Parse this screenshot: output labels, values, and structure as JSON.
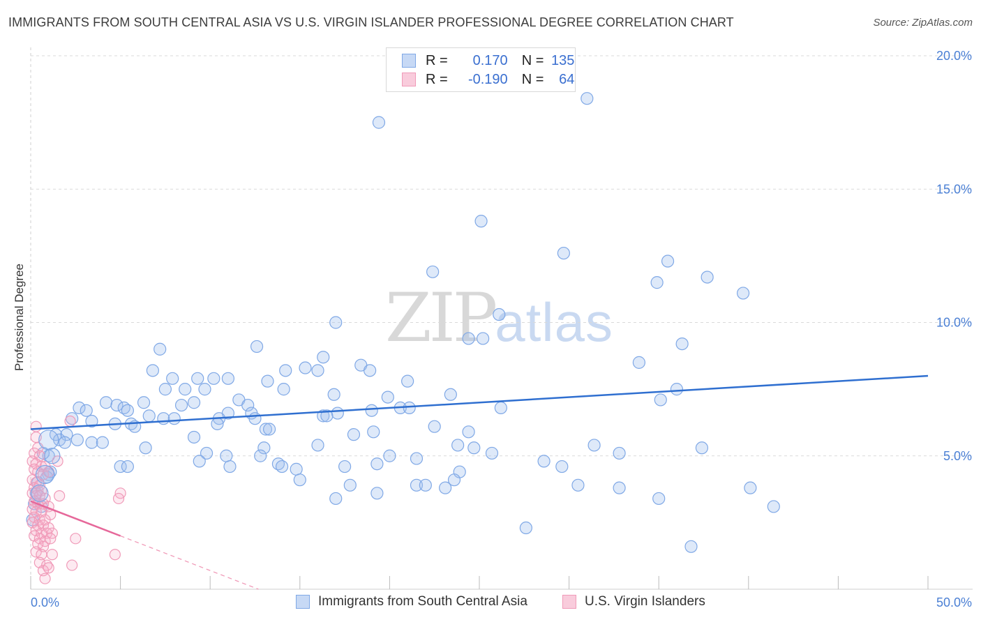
{
  "header": {
    "title": "IMMIGRANTS FROM SOUTH CENTRAL ASIA VS U.S. VIRGIN ISLANDER PROFESSIONAL DEGREE CORRELATION CHART",
    "source": "Source: ZipAtlas.com"
  },
  "watermark": {
    "zip": "ZIP",
    "atlas": "atlas"
  },
  "legend": {
    "r_label": "R =",
    "n_label": "N =",
    "rows": [
      {
        "r": "0.170",
        "n": "135",
        "color": "#7fa8e6"
      },
      {
        "r": "-0.190",
        "n": "64",
        "color": "#f09ab8"
      }
    ]
  },
  "chart_data": {
    "type": "scatter",
    "title": "IMMIGRANTS FROM SOUTH CENTRAL ASIA VS U.S. VIRGIN ISLANDER PROFESSIONAL DEGREE CORRELATION CHART",
    "xlabel": "",
    "ylabel": "Professional Degree",
    "xlim": [
      0,
      50
    ],
    "ylim": [
      0,
      20
    ],
    "x_tick_labels": [
      "0.0%",
      "50.0%"
    ],
    "y_ticks": [
      5,
      10,
      15,
      20
    ],
    "y_tick_labels": [
      "5.0%",
      "10.0%",
      "15.0%",
      "20.0%"
    ],
    "grid": true,
    "legend_position": "bottom",
    "series": [
      {
        "name": "Immigrants from South Central Asia",
        "color": "#7fa8e6",
        "trend": {
          "x": [
            0,
            50
          ],
          "y": [
            6.0,
            8.0
          ]
        },
        "points": [
          [
            19.4,
            17.5
          ],
          [
            31.0,
            18.4
          ],
          [
            25.1,
            13.8
          ],
          [
            29.7,
            12.6
          ],
          [
            22.4,
            11.9
          ],
          [
            35.5,
            12.3
          ],
          [
            34.9,
            11.5
          ],
          [
            37.7,
            11.7
          ],
          [
            39.7,
            11.1
          ],
          [
            17.0,
            10.0
          ],
          [
            26.1,
            10.3
          ],
          [
            24.4,
            9.4
          ],
          [
            25.2,
            9.4
          ],
          [
            36.3,
            9.2
          ],
          [
            7.2,
            9.0
          ],
          [
            12.6,
            9.1
          ],
          [
            33.9,
            8.5
          ],
          [
            16.3,
            8.7
          ],
          [
            18.4,
            8.4
          ],
          [
            15.3,
            8.3
          ],
          [
            16.0,
            8.2
          ],
          [
            14.2,
            8.2
          ],
          [
            18.9,
            8.2
          ],
          [
            6.8,
            8.2
          ],
          [
            7.9,
            7.9
          ],
          [
            9.3,
            7.9
          ],
          [
            10.2,
            7.9
          ],
          [
            11.0,
            7.9
          ],
          [
            13.2,
            7.8
          ],
          [
            21.0,
            7.8
          ],
          [
            7.5,
            7.5
          ],
          [
            8.6,
            7.5
          ],
          [
            9.7,
            7.5
          ],
          [
            14.1,
            7.5
          ],
          [
            16.9,
            7.3
          ],
          [
            19.9,
            7.2
          ],
          [
            23.4,
            7.3
          ],
          [
            36.0,
            7.5
          ],
          [
            35.1,
            7.1
          ],
          [
            11.6,
            7.1
          ],
          [
            4.2,
            7.0
          ],
          [
            6.3,
            7.0
          ],
          [
            9.1,
            7.0
          ],
          [
            8.4,
            6.9
          ],
          [
            4.8,
            6.9
          ],
          [
            12.1,
            6.9
          ],
          [
            2.7,
            6.8
          ],
          [
            5.2,
            6.8
          ],
          [
            3.1,
            6.7
          ],
          [
            5.4,
            6.7
          ],
          [
            12.3,
            6.6
          ],
          [
            11.0,
            6.6
          ],
          [
            19.0,
            6.7
          ],
          [
            20.6,
            6.8
          ],
          [
            21.1,
            6.8
          ],
          [
            26.2,
            6.8
          ],
          [
            17.1,
            6.6
          ],
          [
            16.3,
            6.5
          ],
          [
            16.5,
            6.5
          ],
          [
            6.6,
            6.5
          ],
          [
            7.4,
            6.4
          ],
          [
            8.0,
            6.4
          ],
          [
            10.5,
            6.4
          ],
          [
            12.5,
            6.4
          ],
          [
            2.3,
            6.4
          ],
          [
            3.4,
            6.3
          ],
          [
            4.7,
            6.2
          ],
          [
            5.6,
            6.2
          ],
          [
            5.8,
            6.1
          ],
          [
            10.4,
            6.2
          ],
          [
            13.1,
            6.0
          ],
          [
            13.3,
            6.0
          ],
          [
            22.5,
            6.1
          ],
          [
            19.1,
            5.9
          ],
          [
            18.0,
            5.8
          ],
          [
            24.4,
            5.9
          ],
          [
            1.4,
            5.8
          ],
          [
            2.0,
            5.8
          ],
          [
            1.6,
            5.6
          ],
          [
            2.6,
            5.6
          ],
          [
            1.9,
            5.5
          ],
          [
            3.4,
            5.5
          ],
          [
            4.0,
            5.5
          ],
          [
            9.1,
            5.7
          ],
          [
            16.0,
            5.4
          ],
          [
            23.8,
            5.4
          ],
          [
            24.7,
            5.3
          ],
          [
            31.4,
            5.4
          ],
          [
            37.4,
            5.3
          ],
          [
            6.4,
            5.3
          ],
          [
            13.0,
            5.3
          ],
          [
            9.8,
            5.1
          ],
          [
            1.0,
            5.0
          ],
          [
            10.9,
            5.0
          ],
          [
            12.8,
            5.0
          ],
          [
            20.0,
            5.0
          ],
          [
            21.5,
            4.9
          ],
          [
            25.7,
            5.1
          ],
          [
            32.8,
            5.1
          ],
          [
            28.6,
            4.8
          ],
          [
            5.0,
            4.6
          ],
          [
            11.1,
            4.6
          ],
          [
            13.8,
            4.7
          ],
          [
            14.0,
            4.6
          ],
          [
            14.8,
            4.5
          ],
          [
            17.5,
            4.6
          ],
          [
            19.3,
            4.7
          ],
          [
            29.6,
            4.6
          ],
          [
            23.9,
            4.4
          ],
          [
            1.0,
            4.3
          ],
          [
            0.9,
            4.2
          ],
          [
            15.0,
            4.1
          ],
          [
            23.6,
            4.1
          ],
          [
            21.5,
            3.9
          ],
          [
            22.0,
            3.9
          ],
          [
            17.8,
            3.9
          ],
          [
            23.1,
            3.8
          ],
          [
            30.5,
            3.9
          ],
          [
            32.8,
            3.8
          ],
          [
            40.1,
            3.8
          ],
          [
            0.3,
            3.6
          ],
          [
            19.3,
            3.6
          ],
          [
            17.0,
            3.4
          ],
          [
            35.0,
            3.4
          ],
          [
            0.6,
            3.1
          ],
          [
            41.4,
            3.1
          ],
          [
            27.6,
            2.3
          ],
          [
            36.8,
            1.6
          ],
          [
            0.1,
            2.6
          ],
          [
            0.7,
            5.1
          ],
          [
            1.1,
            4.4
          ],
          [
            0.4,
            4.0
          ],
          [
            0.2,
            3.2
          ],
          [
            5.4,
            4.6
          ],
          [
            9.4,
            4.8
          ]
        ]
      },
      {
        "name": "U.S. Virgin Islanders",
        "color": "#f09ab8",
        "trend": {
          "x": [
            0,
            5.0
          ],
          "y": [
            3.3,
            2.0
          ]
        },
        "points": [
          [
            0.3,
            6.1
          ],
          [
            0.3,
            5.7
          ],
          [
            0.4,
            5.3
          ],
          [
            0.2,
            5.1
          ],
          [
            0.5,
            5.0
          ],
          [
            0.1,
            4.8
          ],
          [
            0.3,
            4.7
          ],
          [
            0.6,
            4.6
          ],
          [
            0.8,
            4.6
          ],
          [
            1.5,
            4.8
          ],
          [
            0.2,
            4.5
          ],
          [
            0.4,
            4.4
          ],
          [
            0.7,
            4.3
          ],
          [
            1.0,
            4.4
          ],
          [
            0.1,
            4.1
          ],
          [
            0.3,
            4.0
          ],
          [
            0.5,
            3.9
          ],
          [
            0.2,
            3.8
          ],
          [
            0.4,
            3.7
          ],
          [
            0.6,
            3.7
          ],
          [
            0.1,
            3.6
          ],
          [
            0.3,
            3.5
          ],
          [
            0.5,
            3.5
          ],
          [
            0.8,
            3.4
          ],
          [
            1.6,
            3.5
          ],
          [
            0.2,
            3.3
          ],
          [
            0.4,
            3.2
          ],
          [
            0.7,
            3.2
          ],
          [
            1.0,
            3.1
          ],
          [
            0.1,
            3.0
          ],
          [
            0.3,
            2.9
          ],
          [
            0.6,
            2.9
          ],
          [
            1.1,
            2.8
          ],
          [
            0.2,
            2.7
          ],
          [
            0.5,
            2.6
          ],
          [
            0.8,
            2.6
          ],
          [
            0.1,
            2.5
          ],
          [
            0.4,
            2.4
          ],
          [
            0.7,
            2.4
          ],
          [
            1.0,
            2.3
          ],
          [
            0.3,
            2.2
          ],
          [
            0.6,
            2.1
          ],
          [
            0.9,
            2.1
          ],
          [
            1.2,
            2.1
          ],
          [
            0.2,
            2.0
          ],
          [
            0.5,
            1.9
          ],
          [
            0.8,
            1.8
          ],
          [
            1.1,
            1.9
          ],
          [
            0.4,
            1.7
          ],
          [
            0.7,
            1.6
          ],
          [
            2.5,
            1.9
          ],
          [
            0.3,
            1.4
          ],
          [
            0.6,
            1.3
          ],
          [
            1.2,
            1.3
          ],
          [
            4.7,
            1.3
          ],
          [
            0.5,
            1.0
          ],
          [
            0.9,
            0.9
          ],
          [
            2.3,
            0.9
          ],
          [
            0.7,
            0.7
          ],
          [
            1.0,
            0.8
          ],
          [
            0.8,
            0.4
          ],
          [
            2.2,
            6.3
          ],
          [
            5.0,
            3.6
          ],
          [
            4.9,
            3.4
          ]
        ]
      }
    ]
  },
  "bottom_legend": [
    {
      "label": "Immigrants from South Central Asia",
      "color": "#7fa8e6"
    },
    {
      "label": "U.S. Virgin Islanders",
      "color": "#f09ab8"
    }
  ]
}
